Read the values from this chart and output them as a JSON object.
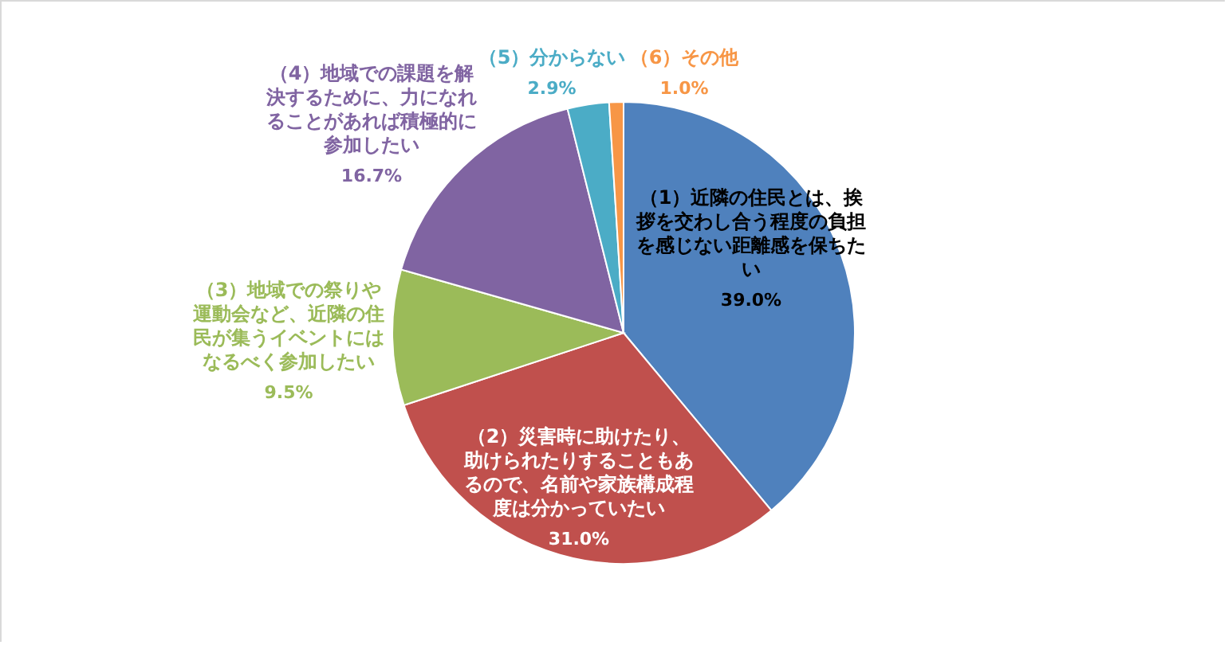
{
  "chart_data": {
    "type": "pie",
    "categories": [
      "（1）近隣の住民とは、挨拶を交わし合う程度の負担を感じない距離感を保ちたい",
      "（2）災害時に助けたり、助けられたりすることもあるので、名前や家族構成程度は分かっていたい",
      "（3）地域での祭りや運動会など、近隣の住民が集うイベントにはなるべく参加したい",
      "（4）地域での課題を解決するために、力になれることがあれば積極的に参加したい",
      "（5）分からない",
      "（6）その他"
    ],
    "values": [
      39.0,
      31.0,
      9.5,
      16.7,
      2.9,
      1.0
    ],
    "value_labels": [
      "39.0%",
      "31.0%",
      "9.5%",
      "16.7%",
      "2.9%",
      "1.0%"
    ],
    "colors": [
      "#4f81bd",
      "#c0504d",
      "#9bbb59",
      "#8064a2",
      "#4bacc6",
      "#f79646"
    ]
  }
}
